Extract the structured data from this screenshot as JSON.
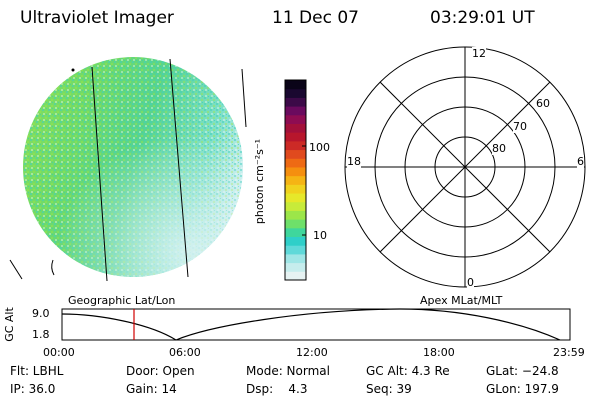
{
  "header": {
    "instrument": "Ultraviolet Imager",
    "date": "11 Dec 07",
    "time": "03:29:01 UT"
  },
  "colorbar": {
    "label": "photon cm⁻²s⁻¹",
    "tick_100": "100",
    "tick_10": "10",
    "colors": [
      "#e6f2f2",
      "#c6eded",
      "#9fe6e6",
      "#5fd9d9",
      "#2fcfc9",
      "#3fd69c",
      "#6ee06a",
      "#9ce649",
      "#c7eb3a",
      "#e6e82a",
      "#f0d21e",
      "#f5b414",
      "#f58f0f",
      "#ee6a14",
      "#e04a1e",
      "#cc2a26",
      "#b8162c",
      "#a3103a",
      "#8e0c52",
      "#6a0a5e",
      "#3c0a48",
      "#1a0830",
      "#0a0418"
    ]
  },
  "polar": {
    "mlt_12": "12",
    "mlt_18": "18",
    "mlt_6": "6",
    "mlt_0": "0",
    "lat_60": "60",
    "lat_70": "70",
    "lat_80": "80"
  },
  "labels": {
    "geo": "Geographic Lat/Lon",
    "apex": "Apex MLat/MLT"
  },
  "altitude_plot": {
    "ylabel": "GC Alt",
    "y_top": "9.0",
    "y_bottom": "1.8",
    "x_ticks": [
      "00:00",
      "06:00",
      "12:00",
      "18:00",
      "23:59"
    ],
    "marker_time": "03:29:01"
  },
  "status": {
    "flt": "Flt: LBHL",
    "ip": "IP: 36.0",
    "door": "Door: Open",
    "gain": "Gain: 14",
    "mode": "Mode: Normal",
    "dsp": "Dsp:    4.3",
    "gc_alt": "GC Alt: 4.3 Re",
    "seq": "Seq: 39",
    "glat": "GLat: −24.8",
    "glon": "GLon: 197.9"
  },
  "colors": {
    "marker": "#d00000"
  }
}
